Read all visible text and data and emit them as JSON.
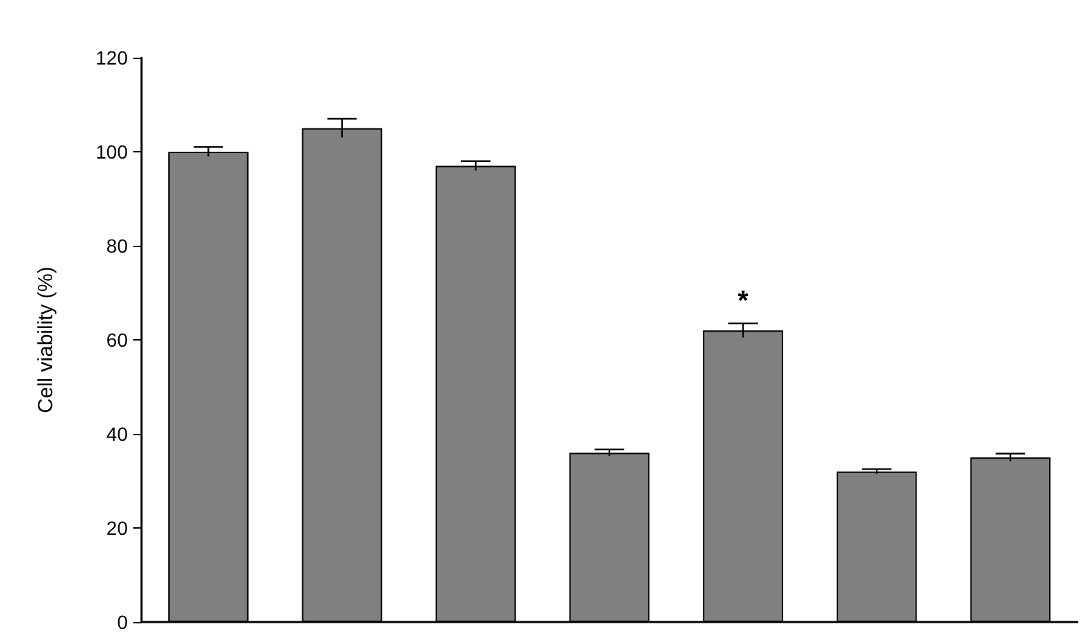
{
  "chart_data": {
    "type": "bar",
    "ylabel": "Cell viability (%)",
    "categories": [
      null,
      null,
      null,
      null,
      null,
      null,
      null
    ],
    "values": [
      100,
      105,
      97,
      36,
      62,
      32,
      35
    ],
    "errors": [
      1,
      2,
      1,
      0.7,
      1.5,
      0.5,
      0.8
    ],
    "color": "#808080",
    "ylim": [
      0,
      120
    ],
    "yticks": [
      0,
      20,
      40,
      60,
      80,
      100,
      120
    ],
    "annotations": [
      "*"
    ],
    "grid": false
  }
}
